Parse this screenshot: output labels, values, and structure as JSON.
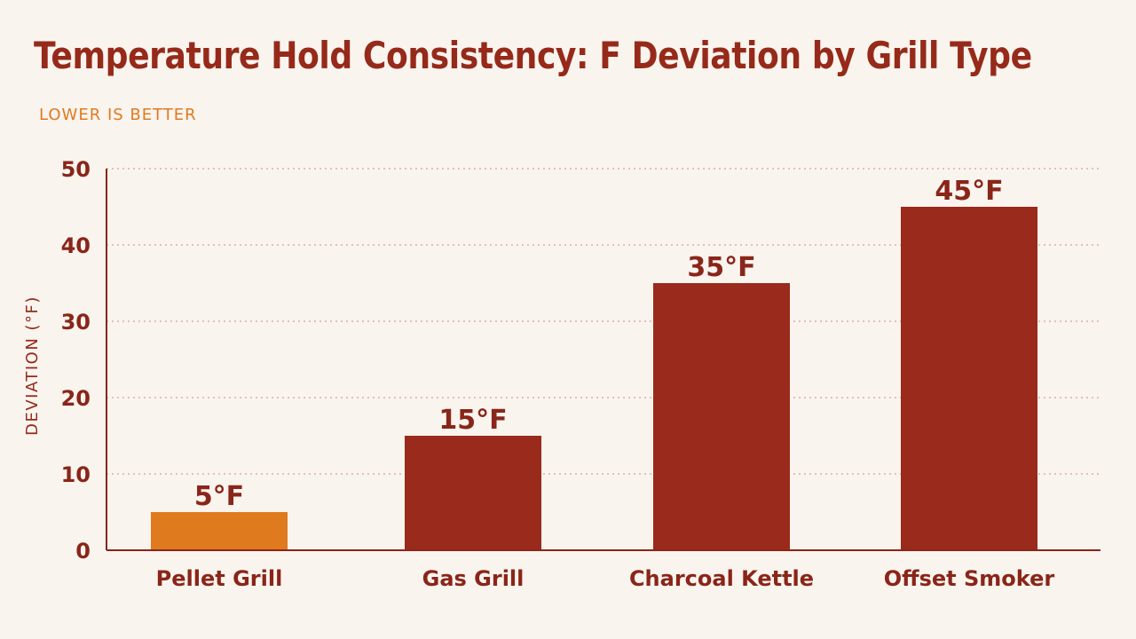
{
  "colors": {
    "background": "#f9f4ee",
    "title": "#962a1a",
    "subtitle": "#e07a1f",
    "bar_default": "#9a2a1b",
    "bar_highlight": "#e07a1f",
    "grid": "#dcaea3",
    "axis": "#8a2519"
  },
  "chart_data": {
    "type": "bar",
    "title": "Temperature Hold Consistency: F Deviation by Grill Type",
    "subtitle": "LOWER IS BETTER",
    "xlabel": "",
    "ylabel": "DEVIATION (°F)",
    "categories": [
      "Pellet Grill",
      "Gas Grill",
      "Charcoal Kettle",
      "Offset Smoker"
    ],
    "values": [
      5,
      15,
      35,
      45
    ],
    "data_labels": [
      "5°F",
      "15°F",
      "35°F",
      "45°F"
    ],
    "highlight_index": 0,
    "ylim": [
      0,
      50
    ],
    "yticks": [
      0,
      10,
      20,
      30,
      40,
      50
    ],
    "grid": true,
    "grid_style": "dotted",
    "legend": "none"
  }
}
